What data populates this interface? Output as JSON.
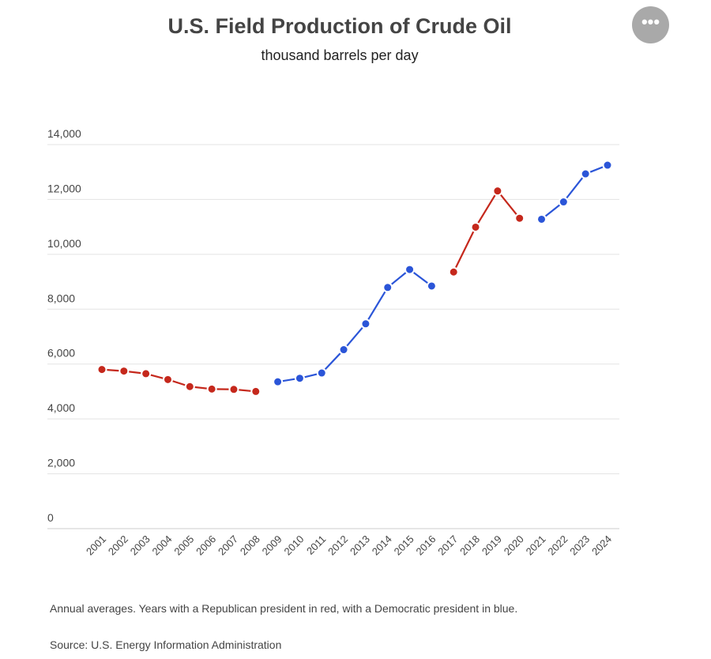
{
  "menu_icon": "more-horizontal-icon",
  "menu_glyph": "•••",
  "chart_data": {
    "type": "line",
    "title": "U.S. Field Production of Crude Oil",
    "subtitle": "thousand barrels per day",
    "xlabel": "",
    "ylabel": "",
    "ylim": [
      0,
      14000
    ],
    "yticks": [
      0,
      2000,
      4000,
      6000,
      8000,
      10000,
      12000,
      14000
    ],
    "ytick_labels": [
      "0",
      "2,000",
      "4,000",
      "6,000",
      "8,000",
      "10,000",
      "12,000",
      "14,000"
    ],
    "grid": true,
    "colors": {
      "republican": "#c5281c",
      "democratic": "#2b55d8"
    },
    "x": [
      "2001",
      "2002",
      "2003",
      "2004",
      "2005",
      "2006",
      "2007",
      "2008",
      "2009",
      "2010",
      "2011",
      "2012",
      "2013",
      "2014",
      "2015",
      "2016",
      "2017",
      "2018",
      "2019",
      "2020",
      "2021",
      "2022",
      "2023",
      "2024"
    ],
    "values": [
      5801,
      5744,
      5649,
      5435,
      5178,
      5088,
      5077,
      5000,
      5353,
      5482,
      5674,
      6523,
      7467,
      8793,
      9446,
      8845,
      9355,
      10991,
      12310,
      11314,
      11279,
      11911,
      12933,
      13250
    ],
    "segments": [
      {
        "party": "republican",
        "from": "2001",
        "to": "2008"
      },
      {
        "party": "democratic",
        "from": "2009",
        "to": "2016"
      },
      {
        "party": "republican",
        "from": "2017",
        "to": "2020"
      },
      {
        "party": "democratic",
        "from": "2021",
        "to": "2024"
      }
    ]
  },
  "notes": {
    "caption": "Annual averages. Years with a Republican president in red, with a Democratic president in blue.",
    "source": "Source: U.S. Energy Information Administration"
  }
}
